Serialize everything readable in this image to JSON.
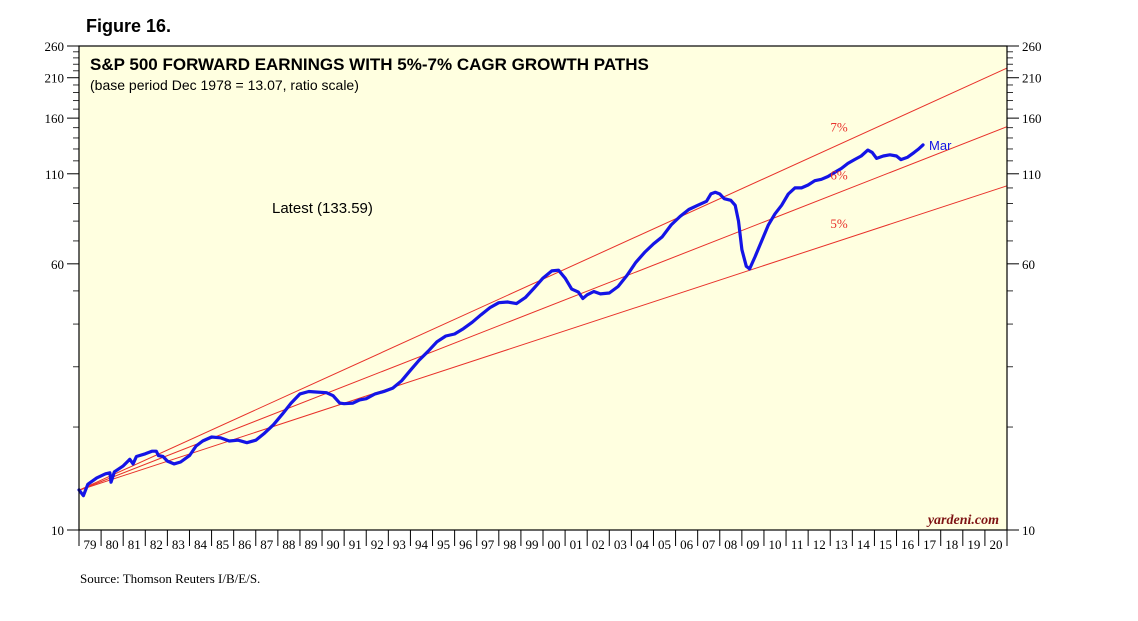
{
  "figure_label": "Figure 16.",
  "source": "Source: Thomson Reuters I/B/E/S.",
  "chart_data": {
    "type": "line",
    "title": "S&P 500 FORWARD EARNINGS WITH 5%-7% CAGR GROWTH PATHS",
    "subtitle": "(base period Dec 1978 = 13.07, ratio scale)",
    "latest_label": "Latest (133.59)",
    "end_label": "Mar",
    "watermark": "yardeni.com",
    "y_scale": "log",
    "ylim": [
      10,
      260
    ],
    "y_ticks": [
      10,
      60,
      110,
      160,
      210,
      260
    ],
    "xlim": [
      1979,
      2021
    ],
    "x_tick_labels": [
      "79",
      "80",
      "81",
      "82",
      "83",
      "84",
      "85",
      "86",
      "87",
      "88",
      "89",
      "90",
      "91",
      "92",
      "93",
      "94",
      "95",
      "96",
      "97",
      "98",
      "99",
      "00",
      "01",
      "02",
      "03",
      "04",
      "05",
      "06",
      "07",
      "08",
      "09",
      "10",
      "11",
      "12",
      "13",
      "14",
      "15",
      "16",
      "17",
      "18",
      "19",
      "20"
    ],
    "growth_paths": {
      "base_year": 1979,
      "base_value": 13.07,
      "lines": [
        {
          "label": "7%",
          "rate": 0.07
        },
        {
          "label": "6%",
          "rate": 0.06
        },
        {
          "label": "5%",
          "rate": 0.05
        }
      ]
    },
    "series": [
      {
        "values": [
          [
            1979.0,
            13.1
          ],
          [
            1979.2,
            12.6
          ],
          [
            1979.4,
            13.6
          ],
          [
            1979.8,
            14.2
          ],
          [
            1980.2,
            14.6
          ],
          [
            1980.4,
            14.7
          ],
          [
            1980.45,
            13.8
          ],
          [
            1980.6,
            14.8
          ],
          [
            1981.0,
            15.4
          ],
          [
            1981.3,
            16.1
          ],
          [
            1981.45,
            15.6
          ],
          [
            1981.6,
            16.4
          ],
          [
            1982.0,
            16.7
          ],
          [
            1982.3,
            17.0
          ],
          [
            1982.5,
            17.0
          ],
          [
            1982.6,
            16.5
          ],
          [
            1982.8,
            16.4
          ],
          [
            1983.0,
            15.9
          ],
          [
            1983.3,
            15.6
          ],
          [
            1983.6,
            15.8
          ],
          [
            1984.0,
            16.5
          ],
          [
            1984.3,
            17.6
          ],
          [
            1984.6,
            18.2
          ],
          [
            1985.0,
            18.7
          ],
          [
            1985.4,
            18.6
          ],
          [
            1985.8,
            18.2
          ],
          [
            1986.2,
            18.3
          ],
          [
            1986.6,
            18.0
          ],
          [
            1987.0,
            18.3
          ],
          [
            1987.4,
            19.2
          ],
          [
            1987.8,
            20.3
          ],
          [
            1988.2,
            21.8
          ],
          [
            1988.6,
            23.5
          ],
          [
            1989.0,
            25.0
          ],
          [
            1989.4,
            25.4
          ],
          [
            1989.8,
            25.3
          ],
          [
            1990.2,
            25.2
          ],
          [
            1990.5,
            24.7
          ],
          [
            1990.8,
            23.5
          ],
          [
            1991.0,
            23.4
          ],
          [
            1991.4,
            23.5
          ],
          [
            1991.7,
            24.0
          ],
          [
            1992.0,
            24.2
          ],
          [
            1992.4,
            25.0
          ],
          [
            1992.8,
            25.4
          ],
          [
            1993.2,
            26.0
          ],
          [
            1993.6,
            27.3
          ],
          [
            1994.0,
            29.3
          ],
          [
            1994.4,
            31.4
          ],
          [
            1994.8,
            33.3
          ],
          [
            1995.2,
            35.5
          ],
          [
            1995.6,
            36.9
          ],
          [
            1996.0,
            37.4
          ],
          [
            1996.4,
            38.8
          ],
          [
            1996.8,
            40.5
          ],
          [
            1997.2,
            42.6
          ],
          [
            1997.6,
            44.7
          ],
          [
            1998.0,
            46.2
          ],
          [
            1998.4,
            46.4
          ],
          [
            1998.8,
            45.9
          ],
          [
            1999.2,
            47.8
          ],
          [
            1999.6,
            51.0
          ],
          [
            2000.0,
            54.5
          ],
          [
            2000.4,
            57.2
          ],
          [
            2000.7,
            57.5
          ],
          [
            2001.0,
            54.5
          ],
          [
            2001.3,
            50.6
          ],
          [
            2001.6,
            49.6
          ],
          [
            2001.8,
            47.5
          ],
          [
            2002.0,
            48.7
          ],
          [
            2002.3,
            49.8
          ],
          [
            2002.6,
            49.0
          ],
          [
            2003.0,
            49.3
          ],
          [
            2003.4,
            51.5
          ],
          [
            2003.8,
            55.5
          ],
          [
            2004.2,
            60.6
          ],
          [
            2004.6,
            64.8
          ],
          [
            2005.0,
            68.6
          ],
          [
            2005.4,
            72.0
          ],
          [
            2005.8,
            78.0
          ],
          [
            2006.2,
            82.5
          ],
          [
            2006.6,
            86.5
          ],
          [
            2007.0,
            89.0
          ],
          [
            2007.4,
            91.4
          ],
          [
            2007.6,
            96.1
          ],
          [
            2007.8,
            97.1
          ],
          [
            2008.0,
            96.0
          ],
          [
            2008.2,
            93.0
          ],
          [
            2008.5,
            92.0
          ],
          [
            2008.7,
            89.0
          ],
          [
            2008.85,
            80.0
          ],
          [
            2009.0,
            66.0
          ],
          [
            2009.2,
            59.0
          ],
          [
            2009.35,
            58.0
          ],
          [
            2009.6,
            63.0
          ],
          [
            2009.9,
            70.0
          ],
          [
            2010.2,
            78.0
          ],
          [
            2010.5,
            84.0
          ],
          [
            2010.8,
            89.0
          ],
          [
            2011.1,
            96.0
          ],
          [
            2011.4,
            100.0
          ],
          [
            2011.7,
            100.0
          ],
          [
            2012.0,
            102.0
          ],
          [
            2012.3,
            105.0
          ],
          [
            2012.6,
            106.0
          ],
          [
            2012.9,
            108.0
          ],
          [
            2013.2,
            111.0
          ],
          [
            2013.5,
            114.0
          ],
          [
            2013.8,
            118.0
          ],
          [
            2014.1,
            121.0
          ],
          [
            2014.4,
            124.0
          ],
          [
            2014.7,
            129.0
          ],
          [
            2014.9,
            127.0
          ],
          [
            2015.1,
            122.0
          ],
          [
            2015.4,
            124.0
          ],
          [
            2015.7,
            125.0
          ],
          [
            2016.0,
            124.0
          ],
          [
            2016.2,
            121.0
          ],
          [
            2016.5,
            123.0
          ],
          [
            2016.8,
            127.0
          ],
          [
            2017.0,
            130.0
          ],
          [
            2017.2,
            133.59
          ]
        ]
      }
    ]
  }
}
